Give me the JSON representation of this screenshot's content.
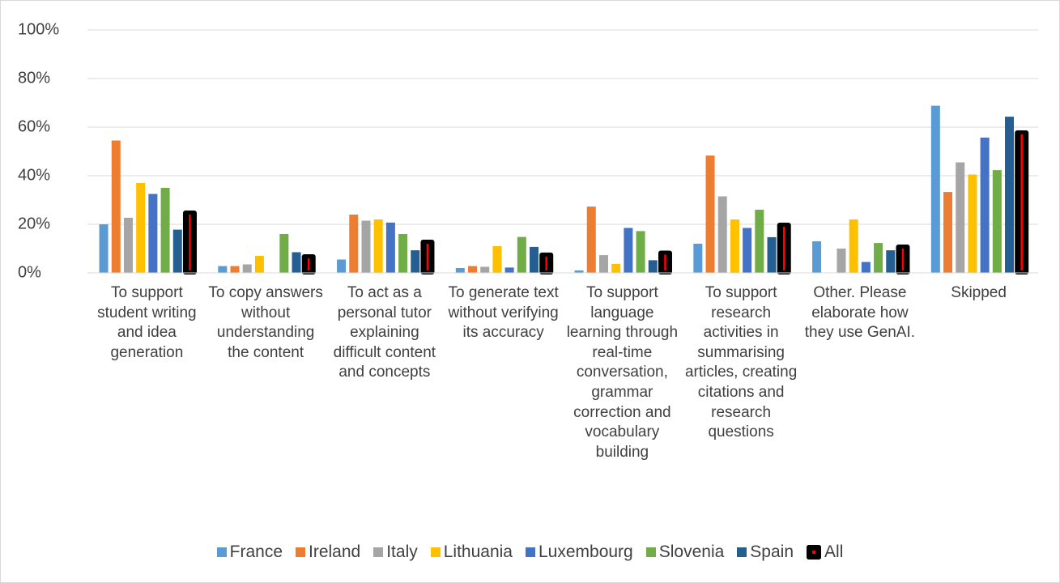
{
  "chart_data": {
    "type": "bar",
    "categories": [
      "To support student writing and idea generation",
      "To copy answers without understanding the content",
      "To act as a personal tutor explaining difficult content and concepts",
      "To generate text without verifying its accuracy",
      "To support language learning through real-time conversation, grammar correction and vocabulary building",
      "To support research activities in summarising articles, creating citations and research questions",
      "Other.  Please elaborate how they use GenAI.",
      "Skipped"
    ],
    "series": [
      {
        "name": "France",
        "color": "#5b9bd5",
        "values": [
          20,
          2.8,
          5.5,
          2,
          1,
          12,
          13,
          68.8
        ]
      },
      {
        "name": "Ireland",
        "color": "#ed7d31",
        "values": [
          54.5,
          2.8,
          24,
          2.8,
          27.3,
          48.3,
          0,
          33.3
        ]
      },
      {
        "name": "Italy",
        "color": "#a5a5a5",
        "values": [
          22.7,
          3.5,
          21.5,
          2.5,
          7.3,
          31.5,
          10,
          45.5
        ]
      },
      {
        "name": "Lithuania",
        "color": "#ffc000",
        "values": [
          37,
          7,
          22,
          11,
          3.7,
          22,
          22,
          40.5
        ]
      },
      {
        "name": "Luxembourg",
        "color": "#4472c4",
        "values": [
          32.5,
          0,
          20.7,
          2.2,
          18.5,
          18.5,
          4.5,
          55.7
        ]
      },
      {
        "name": "Slovenia",
        "color": "#70ad47",
        "values": [
          35,
          16,
          16,
          14.8,
          17.2,
          26,
          12.3,
          42.3
        ]
      },
      {
        "name": "Spain",
        "color": "#255e91",
        "values": [
          17.8,
          8.5,
          9.3,
          10.7,
          5.2,
          14.7,
          9.3,
          64.3
        ]
      },
      {
        "name": "All",
        "color": "#000000",
        "line_color": "#ff0000",
        "values": [
          25,
          7,
          13,
          7.7,
          8.5,
          20,
          11,
          58
        ]
      }
    ],
    "ylim": [
      0,
      100
    ],
    "yticks": [
      {
        "value": 0,
        "label": "0%"
      },
      {
        "value": 20,
        "label": "20%"
      },
      {
        "value": 40,
        "label": "40%"
      },
      {
        "value": 60,
        "label": "60%"
      },
      {
        "value": 80,
        "label": "80%"
      },
      {
        "value": 100,
        "label": "100%"
      }
    ],
    "grid": true,
    "legend": "bottom"
  }
}
